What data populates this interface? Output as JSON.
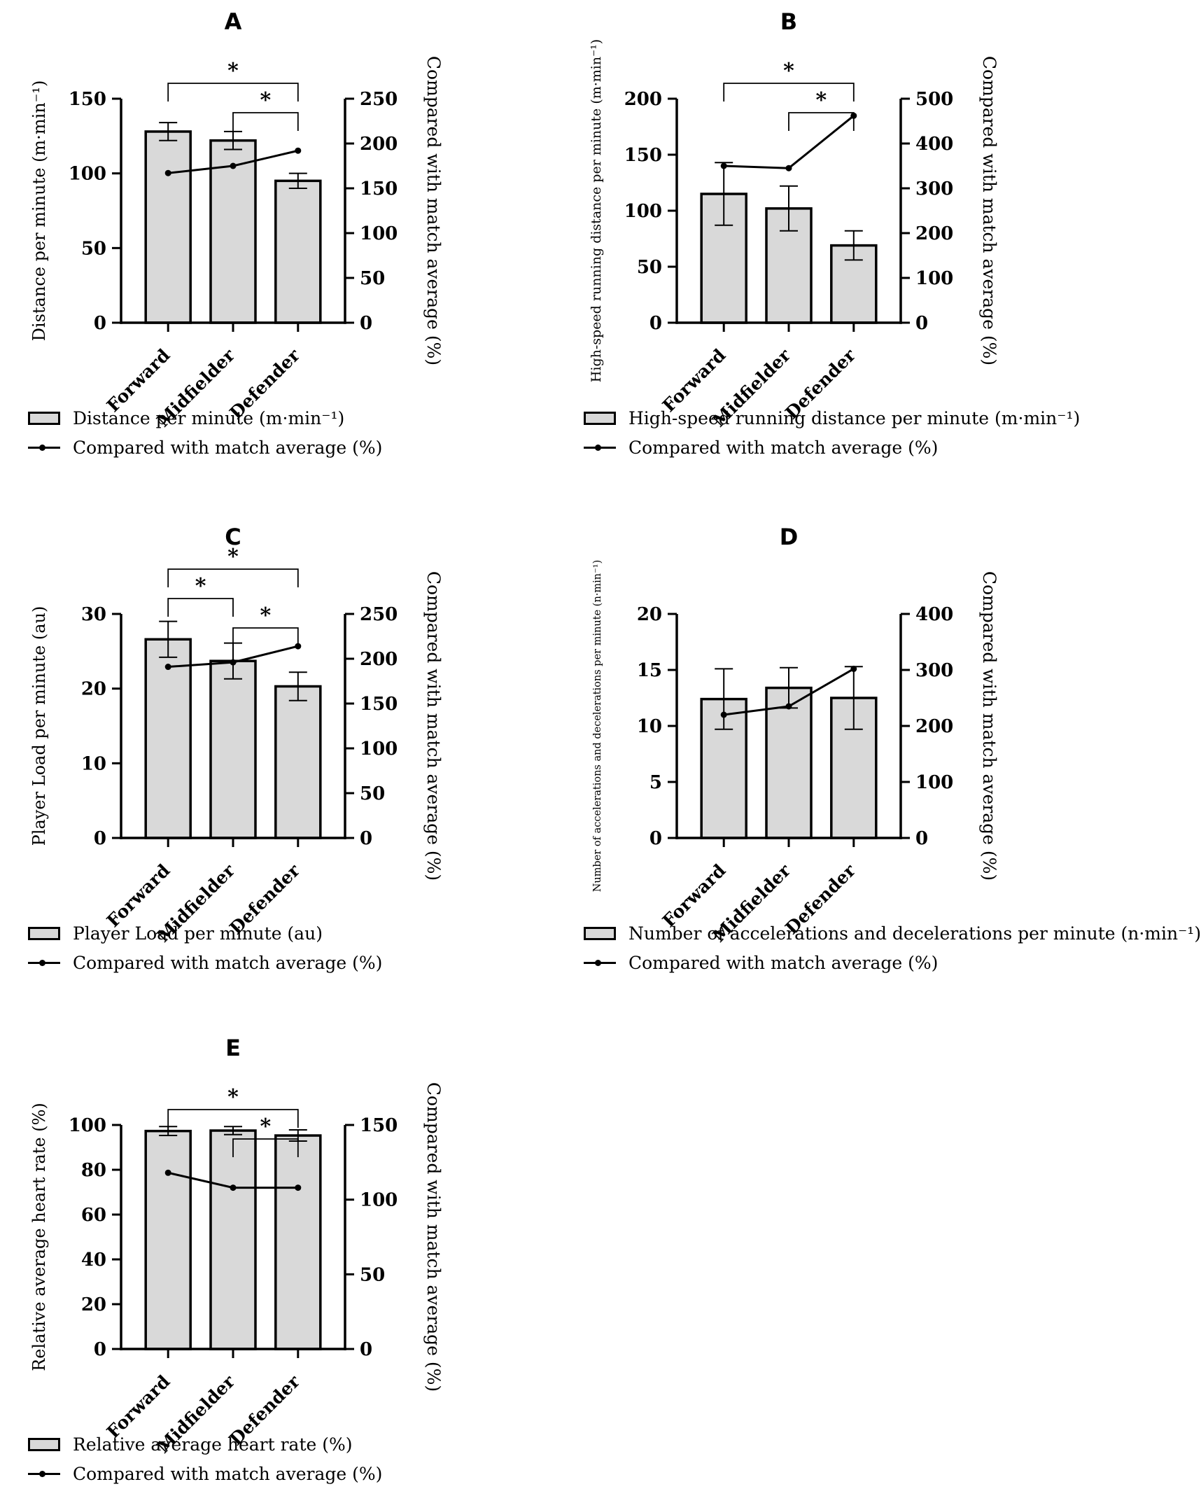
{
  "colors": {
    "bar_fill": "#d9d9d9",
    "stroke": "#000000",
    "background": "#ffffff"
  },
  "categories": [
    "Forward",
    "Midfielder",
    "Defender"
  ],
  "chart_data": [
    {
      "panel": "A",
      "type": "bar",
      "categories": [
        "Forward",
        "Midfielder",
        "Defender"
      ],
      "bars": {
        "name": "Distance per minute (m·min⁻¹)",
        "values": [
          128,
          122,
          95
        ],
        "errors": [
          6,
          6,
          5
        ]
      },
      "line": {
        "name": "Compared with match average (%)",
        "axis": "right",
        "values": [
          167,
          175,
          192
        ]
      },
      "left_axis": {
        "label": "Distance per minute (m·min⁻¹)",
        "ticks": [
          0,
          50,
          100,
          150
        ],
        "max": 150
      },
      "right_axis": {
        "label": "Compared with match average (%)",
        "ticks": [
          0,
          50,
          100,
          150,
          200,
          250
        ],
        "max": 250
      },
      "significance": [
        {
          "pair": [
            "Forward",
            "Defender"
          ],
          "label": "*",
          "level": 2
        },
        {
          "pair": [
            "Midfielder",
            "Defender"
          ],
          "label": "*",
          "level": 1
        }
      ],
      "legend": [
        "Distance per minute (m·min⁻¹)",
        "Compared with match average (%)"
      ]
    },
    {
      "panel": "B",
      "type": "bar",
      "categories": [
        "Forward",
        "Midfielder",
        "Defender"
      ],
      "bars": {
        "name": "High-speed running distance per minute (m·min⁻¹)",
        "values": [
          115,
          102,
          69
        ],
        "errors": [
          28,
          20,
          13
        ]
      },
      "line": {
        "name": "Compared with match average (%)",
        "axis": "right",
        "values": [
          350,
          345,
          462
        ]
      },
      "left_axis": {
        "label": "High-speed running distance per minute (m·min⁻¹)",
        "ticks": [
          0,
          50,
          100,
          150,
          200
        ],
        "max": 200
      },
      "right_axis": {
        "label": "Compared with match average (%)",
        "ticks": [
          0,
          100,
          200,
          300,
          400,
          500
        ],
        "max": 500
      },
      "significance": [
        {
          "pair": [
            "Forward",
            "Defender"
          ],
          "label": "*",
          "level": 2
        },
        {
          "pair": [
            "Midfielder",
            "Defender"
          ],
          "label": "*",
          "level": 1
        }
      ],
      "legend": [
        "High-speed running distance per minute (m·min⁻¹)",
        "Compared with match average (%)"
      ]
    },
    {
      "panel": "C",
      "type": "bar",
      "categories": [
        "Forward",
        "Midfielder",
        "Defender"
      ],
      "bars": {
        "name": "Player Load per minute (au)",
        "values": [
          26.6,
          23.7,
          20.3
        ],
        "errors": [
          2.4,
          2.4,
          1.9
        ]
      },
      "line": {
        "name": "Compared with match average (%)",
        "axis": "right",
        "values": [
          191,
          196,
          214
        ]
      },
      "left_axis": {
        "label": "Player Load per minute (au)",
        "ticks": [
          0,
          10,
          20,
          30
        ],
        "max": 30
      },
      "right_axis": {
        "label": "Compared with match average (%)",
        "ticks": [
          0,
          50,
          100,
          150,
          200,
          250
        ],
        "max": 250
      },
      "significance": [
        {
          "pair": [
            "Forward",
            "Defender"
          ],
          "label": "*",
          "level": 3
        },
        {
          "pair": [
            "Forward",
            "Midfielder"
          ],
          "label": "*",
          "level": 2
        },
        {
          "pair": [
            "Midfielder",
            "Defender"
          ],
          "label": "*",
          "level": 1
        }
      ],
      "legend": [
        "Player Load per minute (au)",
        "Compared with match average (%)"
      ]
    },
    {
      "panel": "D",
      "type": "bar",
      "categories": [
        "Forward",
        "Midfielder",
        "Defender"
      ],
      "bars": {
        "name": "Number of accelerations and decelerations per minute (n·min⁻¹)",
        "values": [
          12.4,
          13.4,
          12.5
        ],
        "errors": [
          2.7,
          1.8,
          2.8
        ]
      },
      "line": {
        "name": "Compared with match average (%)",
        "axis": "right",
        "values": [
          220,
          235,
          302
        ]
      },
      "left_axis": {
        "label": "Number of accelerations and decelerations per minute (n·min⁻¹)",
        "ticks": [
          0,
          5,
          10,
          15,
          20
        ],
        "max": 20
      },
      "right_axis": {
        "label": "Compared with match average (%)",
        "ticks": [
          0,
          100,
          200,
          300,
          400
        ],
        "max": 400
      },
      "significance": [],
      "legend": [
        "Number of accelerations and decelerations per minute (n·min⁻¹)",
        "Compared with match average (%)"
      ]
    },
    {
      "panel": "E",
      "type": "bar",
      "categories": [
        "Forward",
        "Midfielder",
        "Defender"
      ],
      "bars": {
        "name": "Relative average heart rate (%)",
        "values": [
          97.3,
          97.5,
          95.3
        ],
        "errors": [
          2.0,
          1.8,
          2.5
        ]
      },
      "line": {
        "name": "Compared with match average (%)",
        "axis": "right",
        "values": [
          118,
          108,
          108
        ]
      },
      "left_axis": {
        "label": "Relative average heart rate (%)",
        "ticks": [
          0,
          20,
          40,
          60,
          80,
          100
        ],
        "max": 100
      },
      "right_axis": {
        "label": "Compared with match average (%)",
        "ticks": [
          0,
          50,
          100,
          150
        ],
        "max": 150
      },
      "significance": [
        {
          "pair": [
            "Forward",
            "Defender"
          ],
          "label": "*",
          "level": 2
        },
        {
          "pair": [
            "Midfielder",
            "Defender"
          ],
          "label": "*",
          "level": 1
        }
      ],
      "legend": [
        "Relative average heart rate (%)",
        "Compared with match average (%)"
      ]
    }
  ]
}
